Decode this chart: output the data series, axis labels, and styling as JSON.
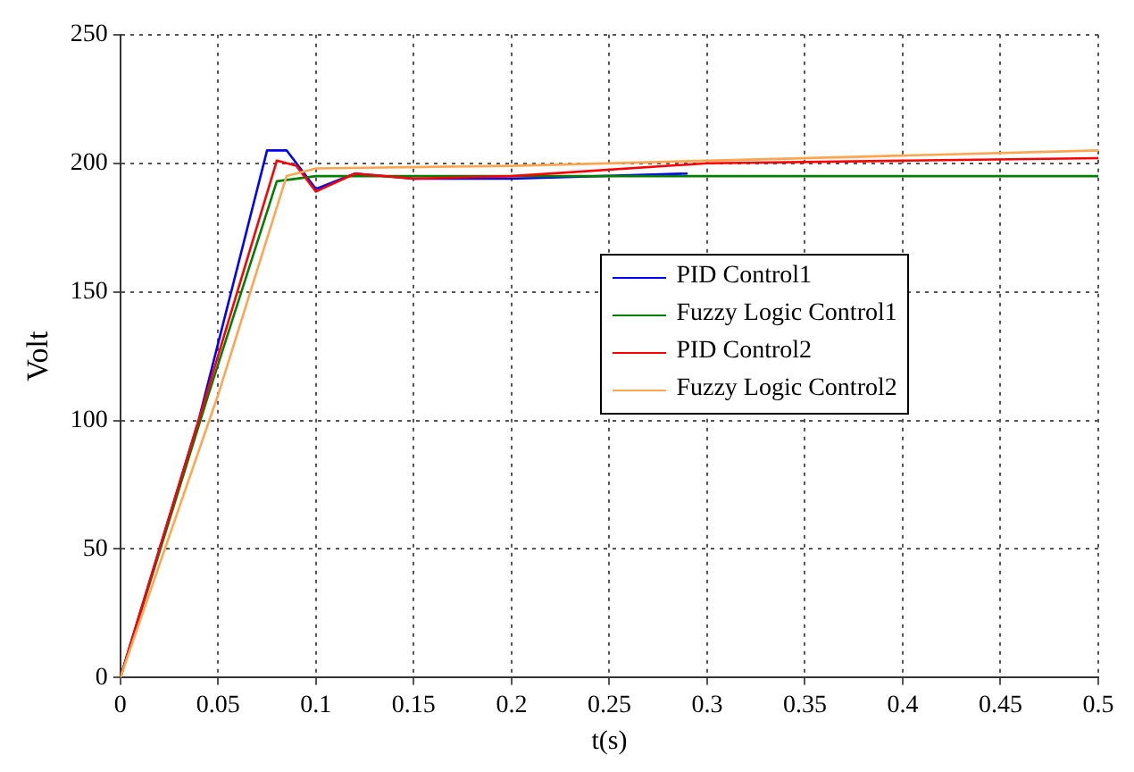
{
  "chart_data": {
    "type": "line",
    "xlabel": "t(s)",
    "ylabel": "Volt",
    "xlim": [
      0,
      0.5
    ],
    "ylim": [
      0,
      250
    ],
    "xticks": [
      0,
      0.05,
      0.1,
      0.15,
      0.2,
      0.25,
      0.3,
      0.35,
      0.4,
      0.45,
      0.5
    ],
    "yticks": [
      0,
      50,
      100,
      150,
      200,
      250
    ],
    "grid": true,
    "legend": "right",
    "marker": "none",
    "line_style": "solid",
    "series": [
      {
        "name": "PID Control1",
        "color": "#0000ff",
        "x": [
          0,
          0.04,
          0.075,
          0.085,
          0.1,
          0.12,
          0.15,
          0.2,
          0.29
        ],
        "values": [
          0,
          100,
          205,
          205,
          190,
          196,
          194,
          194,
          196
        ]
      },
      {
        "name": "Fuzzy Logic Control1",
        "color": "#008000",
        "x": [
          0,
          0.045,
          0.08,
          0.1,
          0.2,
          0.5
        ],
        "values": [
          0,
          110,
          193,
          195,
          195,
          195
        ]
      },
      {
        "name": "PID Control2",
        "color": "#ff0000",
        "x": [
          0,
          0.04,
          0.08,
          0.09,
          0.1,
          0.12,
          0.15,
          0.2,
          0.3,
          0.4,
          0.5
        ],
        "values": [
          0,
          100,
          201,
          199,
          189,
          196,
          194,
          195,
          200,
          201,
          202
        ]
      },
      {
        "name": "Fuzzy Logic Control2",
        "color": "#ffa54f",
        "x": [
          0,
          0.05,
          0.085,
          0.1,
          0.2,
          0.3,
          0.4,
          0.5
        ],
        "values": [
          0,
          110,
          195,
          198,
          199,
          201,
          203,
          205
        ]
      }
    ]
  }
}
